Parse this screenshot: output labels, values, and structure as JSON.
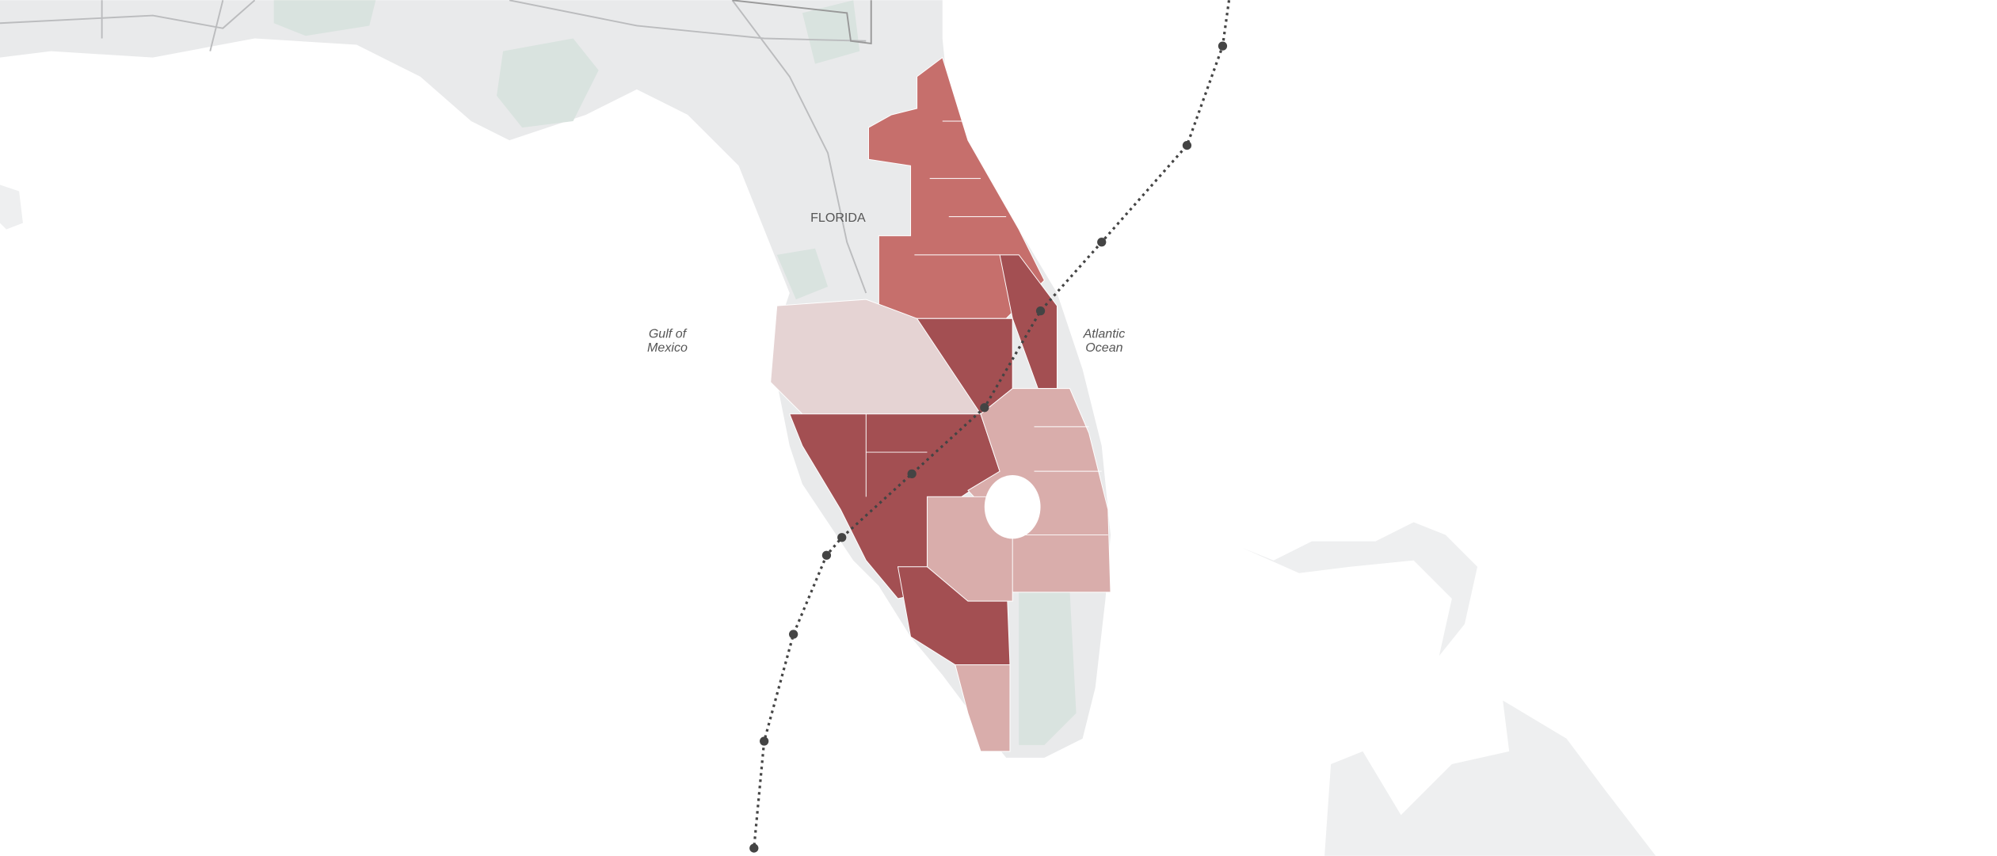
{
  "labels": {
    "state": "FLORIDA",
    "gulf": [
      "Gulf of",
      "Mexico"
    ],
    "atlantic": [
      "Atlantic",
      "Ocean"
    ]
  }
}
